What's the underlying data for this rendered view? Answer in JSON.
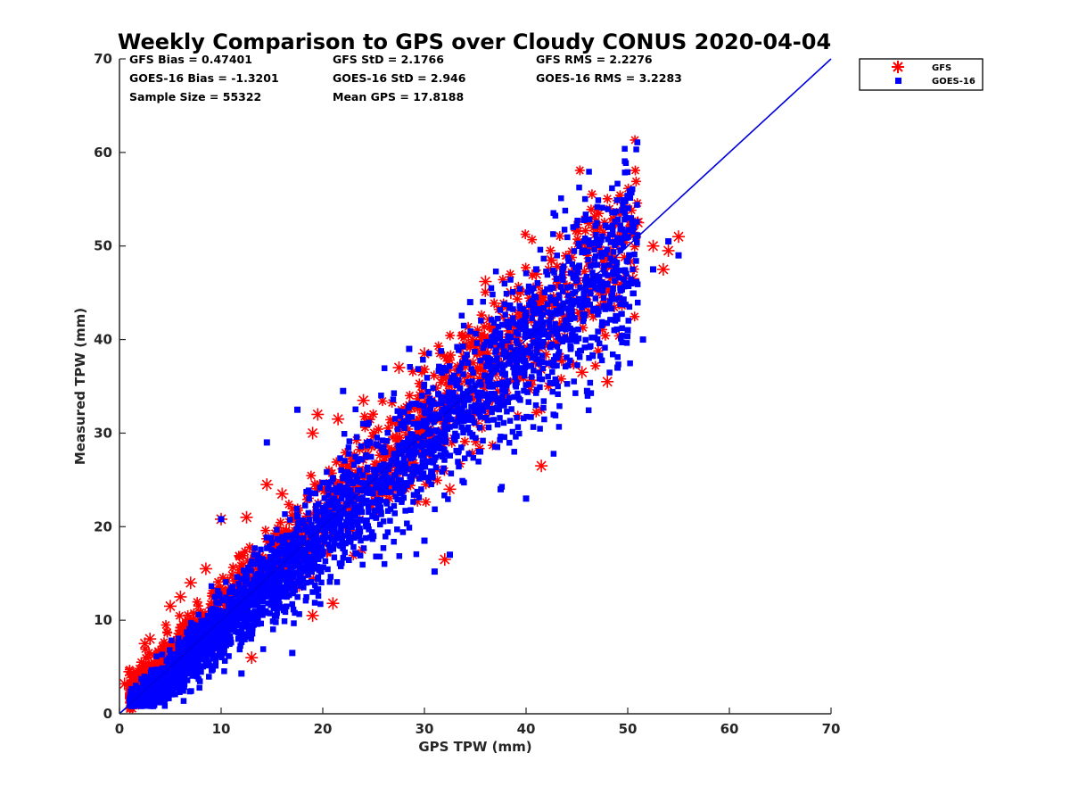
{
  "chart_data": {
    "type": "scatter",
    "title": "Weekly Comparison to GPS over Cloudy CONUS 2020-04-04",
    "xlabel": "GPS TPW (mm)",
    "ylabel": "Measured TPW (mm)",
    "xlim": [
      0,
      70
    ],
    "ylim": [
      0,
      70
    ],
    "xticks": [
      "0",
      "10",
      "20",
      "30",
      "40",
      "50",
      "60",
      "70"
    ],
    "yticks": [
      "0",
      "10",
      "20",
      "30",
      "40",
      "50",
      "60",
      "70"
    ],
    "grid": false,
    "legend_position": "outside-top-right",
    "reference_line": {
      "x": [
        0,
        70
      ],
      "y": [
        0,
        70
      ],
      "color": "#0000dd"
    },
    "stats": {
      "gfs_bias": "GFS Bias = 0.47401",
      "gfs_std": "GFS StD = 2.1766",
      "gfs_rms": "GFS RMS = 2.2276",
      "goes_bias": "GOES-16 Bias = -1.3201",
      "goes_std": "GOES-16 StD = 2.946",
      "goes_rms": "GOES-16 RMS = 3.2283",
      "sample_size": "Sample Size = 55322",
      "mean_gps": "Mean GPS = 17.8188"
    },
    "series": [
      {
        "name": "GFS",
        "marker": "asterisk",
        "color": "#ff0000",
        "bias": 0.47401,
        "std": 2.1766,
        "points": [
          [
            0.5,
            3.2
          ],
          [
            1.0,
            4.5
          ],
          [
            2.5,
            7.5
          ],
          [
            3.0,
            8.0
          ],
          [
            5.0,
            11.5
          ],
          [
            6.0,
            12.5
          ],
          [
            7.0,
            14.0
          ],
          [
            8.5,
            15.5
          ],
          [
            10.0,
            20.8
          ],
          [
            12.5,
            21.0
          ],
          [
            13.0,
            6.0
          ],
          [
            14.5,
            24.5
          ],
          [
            16.0,
            23.5
          ],
          [
            19.0,
            10.5
          ],
          [
            19.0,
            30.0
          ],
          [
            19.5,
            32.0
          ],
          [
            21.0,
            11.8
          ],
          [
            21.5,
            31.5
          ],
          [
            24.0,
            33.5
          ],
          [
            27.5,
            37.0
          ],
          [
            30.0,
            38.5
          ],
          [
            32.0,
            16.5
          ],
          [
            32.5,
            24.0
          ],
          [
            36.0,
            46.2
          ],
          [
            38.5,
            45.0
          ],
          [
            40.5,
            42.5
          ],
          [
            41.5,
            26.5
          ],
          [
            41.0,
            47.0
          ],
          [
            42.5,
            48.5
          ],
          [
            45.5,
            36.5
          ],
          [
            48.0,
            35.5
          ],
          [
            48.5,
            50.5
          ],
          [
            49.5,
            51.0
          ],
          [
            50.5,
            46.5
          ],
          [
            51.0,
            52.5
          ],
          [
            52.5,
            50.0
          ],
          [
            54.0,
            49.5
          ],
          [
            55.0,
            51.0
          ],
          [
            53.5,
            47.5
          ]
        ]
      },
      {
        "name": "GOES-16",
        "marker": "square",
        "color": "#0000ff",
        "bias": -1.3201,
        "std": 2.946,
        "points": [
          [
            1.0,
            1.5
          ],
          [
            2.0,
            1.8
          ],
          [
            4.5,
            2.5
          ],
          [
            8.0,
            4.5
          ],
          [
            10.0,
            20.8
          ],
          [
            12.0,
            4.3
          ],
          [
            14.5,
            29.0
          ],
          [
            17.0,
            6.5
          ],
          [
            17.5,
            32.5
          ],
          [
            22.0,
            34.5
          ],
          [
            28.5,
            39.0
          ],
          [
            30.0,
            18.5
          ],
          [
            31.0,
            15.2
          ],
          [
            32.5,
            17.0
          ],
          [
            34.5,
            44.0
          ],
          [
            37.5,
            24.0
          ],
          [
            40.0,
            23.0
          ],
          [
            41.0,
            47.5
          ],
          [
            43.0,
            46.5
          ],
          [
            46.0,
            34.5
          ],
          [
            47.0,
            50.5
          ],
          [
            50.0,
            41.0
          ],
          [
            49.0,
            37.0
          ],
          [
            51.5,
            40.0
          ],
          [
            52.5,
            47.5
          ],
          [
            55.0,
            49.0
          ],
          [
            54.0,
            50.5
          ]
        ]
      }
    ]
  }
}
